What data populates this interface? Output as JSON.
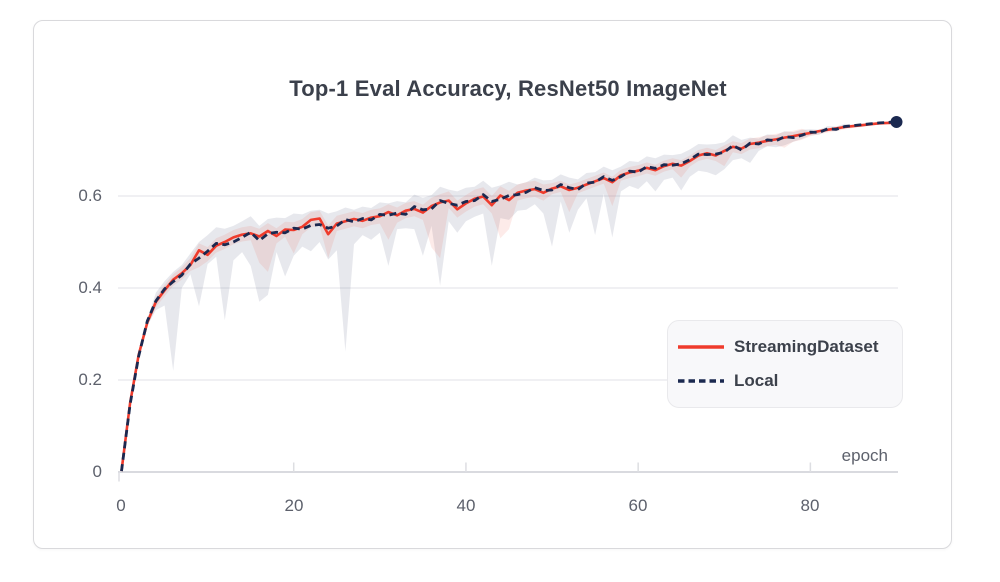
{
  "chart_data": {
    "type": "line",
    "title": "Top-1 Eval Accuracy, ResNet50 ImageNet",
    "xlabel": "epoch",
    "ylabel": "",
    "xlim": [
      0,
      90
    ],
    "ylim": [
      0,
      0.78
    ],
    "grid": "horizontal",
    "xtick_values": [
      0,
      20,
      40,
      60,
      80
    ],
    "xtick_labels": [
      "0",
      "20",
      "40",
      "60",
      "80"
    ],
    "ytick_values": [
      0,
      0.2,
      0.4,
      0.6
    ],
    "ytick_labels": [
      "0",
      "0.2",
      "0.4",
      "0.6"
    ],
    "legend": {
      "position": "inside-right",
      "items": [
        {
          "label": "StreamingDataset",
          "color": "#ef3b2c",
          "style": "solid"
        },
        {
          "label": "Local",
          "color": "#1b2950",
          "style": "dashed"
        }
      ]
    },
    "x": [
      0,
      1,
      2,
      3,
      4,
      5,
      6,
      7,
      8,
      9,
      10,
      11,
      12,
      13,
      14,
      15,
      16,
      17,
      18,
      19,
      20,
      21,
      22,
      23,
      24,
      25,
      26,
      27,
      28,
      29,
      30,
      31,
      32,
      33,
      34,
      35,
      36,
      37,
      38,
      39,
      40,
      41,
      42,
      43,
      44,
      45,
      46,
      47,
      48,
      49,
      50,
      51,
      52,
      53,
      54,
      55,
      56,
      57,
      58,
      59,
      60,
      61,
      62,
      63,
      64,
      65,
      66,
      67,
      68,
      69,
      70,
      71,
      72,
      73,
      74,
      75,
      76,
      77,
      78,
      79,
      80,
      81,
      82,
      83,
      84,
      85,
      86,
      87,
      88,
      89,
      90
    ],
    "series": [
      {
        "name": "StreamingDataset",
        "color": "#ef3b2c",
        "style": "solid",
        "band_color": "rgba(239,59,44,0.10)",
        "values": [
          0.002,
          0.15,
          0.255,
          0.325,
          0.37,
          0.395,
          0.418,
          0.432,
          0.45,
          0.482,
          0.472,
          0.492,
          0.5,
          0.51,
          0.516,
          0.519,
          0.512,
          0.524,
          0.513,
          0.527,
          0.526,
          0.533,
          0.548,
          0.551,
          0.517,
          0.54,
          0.545,
          0.55,
          0.546,
          0.553,
          0.556,
          0.565,
          0.558,
          0.568,
          0.572,
          0.564,
          0.578,
          0.586,
          0.59,
          0.571,
          0.584,
          0.594,
          0.599,
          0.58,
          0.601,
          0.591,
          0.607,
          0.612,
          0.615,
          0.607,
          0.616,
          0.621,
          0.613,
          0.618,
          0.625,
          0.632,
          0.639,
          0.63,
          0.645,
          0.651,
          0.655,
          0.661,
          0.656,
          0.665,
          0.67,
          0.666,
          0.676,
          0.688,
          0.693,
          0.688,
          0.698,
          0.707,
          0.703,
          0.713,
          0.716,
          0.72,
          0.723,
          0.727,
          0.73,
          0.734,
          0.737,
          0.741,
          0.744,
          0.747,
          0.75,
          0.752,
          0.754,
          0.756,
          0.758,
          0.759,
          0.759
        ],
        "band_lower": [
          0.0,
          0.142,
          0.247,
          0.317,
          0.358,
          0.382,
          0.405,
          0.418,
          0.437,
          0.445,
          0.458,
          0.477,
          0.485,
          0.495,
          0.501,
          0.504,
          0.455,
          0.435,
          0.497,
          0.511,
          0.475,
          0.517,
          0.532,
          0.535,
          0.465,
          0.524,
          0.529,
          0.534,
          0.53,
          0.537,
          0.54,
          0.505,
          0.542,
          0.552,
          0.556,
          0.548,
          0.488,
          0.465,
          0.574,
          0.553,
          0.566,
          0.577,
          0.582,
          0.562,
          0.508,
          0.528,
          0.59,
          0.595,
          0.598,
          0.59,
          0.604,
          0.609,
          0.565,
          0.606,
          0.613,
          0.62,
          0.627,
          0.578,
          0.633,
          0.639,
          0.643,
          0.649,
          0.644,
          0.653,
          0.658,
          0.64,
          0.664,
          0.676,
          0.681,
          0.676,
          0.665,
          0.695,
          0.691,
          0.701,
          0.704,
          0.708,
          0.711,
          0.705,
          0.718,
          0.722,
          0.73,
          0.734,
          0.738,
          0.741,
          0.745,
          0.748,
          0.75,
          0.753,
          0.755,
          0.756,
          0.757
        ],
        "band_upper": [
          0.005,
          0.158,
          0.263,
          0.333,
          0.38,
          0.407,
          0.43,
          0.445,
          0.465,
          0.497,
          0.489,
          0.508,
          0.516,
          0.526,
          0.532,
          0.535,
          0.529,
          0.541,
          0.53,
          0.544,
          0.543,
          0.55,
          0.565,
          0.568,
          0.536,
          0.557,
          0.562,
          0.567,
          0.563,
          0.57,
          0.573,
          0.582,
          0.575,
          0.585,
          0.589,
          0.581,
          0.596,
          0.604,
          0.61,
          0.59,
          0.602,
          0.614,
          0.619,
          0.6,
          0.621,
          0.611,
          0.625,
          0.63,
          0.633,
          0.625,
          0.628,
          0.633,
          0.625,
          0.63,
          0.637,
          0.644,
          0.651,
          0.642,
          0.657,
          0.663,
          0.667,
          0.673,
          0.668,
          0.677,
          0.682,
          0.678,
          0.688,
          0.7,
          0.705,
          0.7,
          0.71,
          0.719,
          0.715,
          0.725,
          0.728,
          0.732,
          0.735,
          0.739,
          0.742,
          0.746,
          0.74,
          0.744,
          0.747,
          0.75,
          0.753,
          0.755,
          0.757,
          0.759,
          0.76,
          0.761,
          0.761
        ]
      },
      {
        "name": "Local",
        "color": "#1b2950",
        "style": "dashed",
        "band_color": "rgba(124,130,156,0.18)",
        "values": [
          0.002,
          0.147,
          0.252,
          0.328,
          0.372,
          0.398,
          0.414,
          0.428,
          0.452,
          0.465,
          0.48,
          0.497,
          0.494,
          0.5,
          0.51,
          0.521,
          0.503,
          0.518,
          0.521,
          0.52,
          0.53,
          0.528,
          0.536,
          0.538,
          0.53,
          0.535,
          0.549,
          0.544,
          0.551,
          0.548,
          0.56,
          0.558,
          0.563,
          0.56,
          0.577,
          0.57,
          0.572,
          0.59,
          0.584,
          0.58,
          0.588,
          0.59,
          0.603,
          0.588,
          0.593,
          0.601,
          0.603,
          0.608,
          0.618,
          0.612,
          0.613,
          0.625,
          0.618,
          0.614,
          0.628,
          0.63,
          0.642,
          0.634,
          0.642,
          0.654,
          0.652,
          0.664,
          0.66,
          0.668,
          0.667,
          0.67,
          0.679,
          0.691,
          0.69,
          0.691,
          0.695,
          0.71,
          0.7,
          0.715,
          0.713,
          0.722,
          0.72,
          0.729,
          0.727,
          0.732,
          0.739,
          0.738,
          0.746,
          0.745,
          0.751,
          0.753,
          0.755,
          0.757,
          0.759,
          0.76,
          0.761
        ],
        "band_lower": [
          0.0,
          0.138,
          0.242,
          0.318,
          0.352,
          0.362,
          0.22,
          0.4,
          0.43,
          0.36,
          0.452,
          0.468,
          0.33,
          0.46,
          0.478,
          0.448,
          0.37,
          0.385,
          0.478,
          0.425,
          0.47,
          0.49,
          0.48,
          0.5,
          0.462,
          0.482,
          0.262,
          0.495,
          0.515,
          0.505,
          0.52,
          0.448,
          0.528,
          0.53,
          0.528,
          0.47,
          0.535,
          0.405,
          0.545,
          0.52,
          0.545,
          0.555,
          0.562,
          0.448,
          0.552,
          0.548,
          0.568,
          0.57,
          0.582,
          0.562,
          0.49,
          0.588,
          0.52,
          0.57,
          0.595,
          0.515,
          0.605,
          0.51,
          0.61,
          0.622,
          0.615,
          0.632,
          0.61,
          0.635,
          0.64,
          0.612,
          0.642,
          0.655,
          0.652,
          0.645,
          0.658,
          0.678,
          0.682,
          0.672,
          0.698,
          0.708,
          0.706,
          0.71,
          0.718,
          0.724,
          0.732,
          0.733,
          0.742,
          0.741,
          0.748,
          0.75,
          0.753,
          0.755,
          0.757,
          0.758,
          0.76
        ],
        "band_upper": [
          0.006,
          0.151,
          0.256,
          0.332,
          0.39,
          0.415,
          0.435,
          0.45,
          0.475,
          0.5,
          0.515,
          0.532,
          0.529,
          0.535,
          0.545,
          0.556,
          0.535,
          0.55,
          0.553,
          0.552,
          0.562,
          0.56,
          0.568,
          0.57,
          0.562,
          0.567,
          0.575,
          0.57,
          0.577,
          0.574,
          0.586,
          0.584,
          0.589,
          0.586,
          0.603,
          0.596,
          0.602,
          0.62,
          0.614,
          0.61,
          0.618,
          0.62,
          0.633,
          0.618,
          0.623,
          0.631,
          0.625,
          0.63,
          0.64,
          0.634,
          0.635,
          0.647,
          0.64,
          0.636,
          0.65,
          0.652,
          0.664,
          0.656,
          0.664,
          0.676,
          0.674,
          0.686,
          0.682,
          0.69,
          0.689,
          0.692,
          0.701,
          0.713,
          0.712,
          0.713,
          0.717,
          0.732,
          0.722,
          0.727,
          0.725,
          0.734,
          0.732,
          0.741,
          0.739,
          0.744,
          0.745,
          0.744,
          0.752,
          0.751,
          0.757,
          0.755,
          0.757,
          0.759,
          0.761,
          0.762,
          0.763
        ]
      }
    ],
    "end_marker": {
      "epoch": 90,
      "value": 0.761,
      "color": "#1b2950"
    }
  },
  "colors": {
    "card_border": "#d9d9dc",
    "grid": "#ececef",
    "axis": "#d9dadf",
    "tick": "#dddee2",
    "title_text": "#3b404b",
    "tick_text": "#5d616c",
    "legend_bg": "#f8f8fa",
    "legend_border": "#e9e9ec"
  }
}
